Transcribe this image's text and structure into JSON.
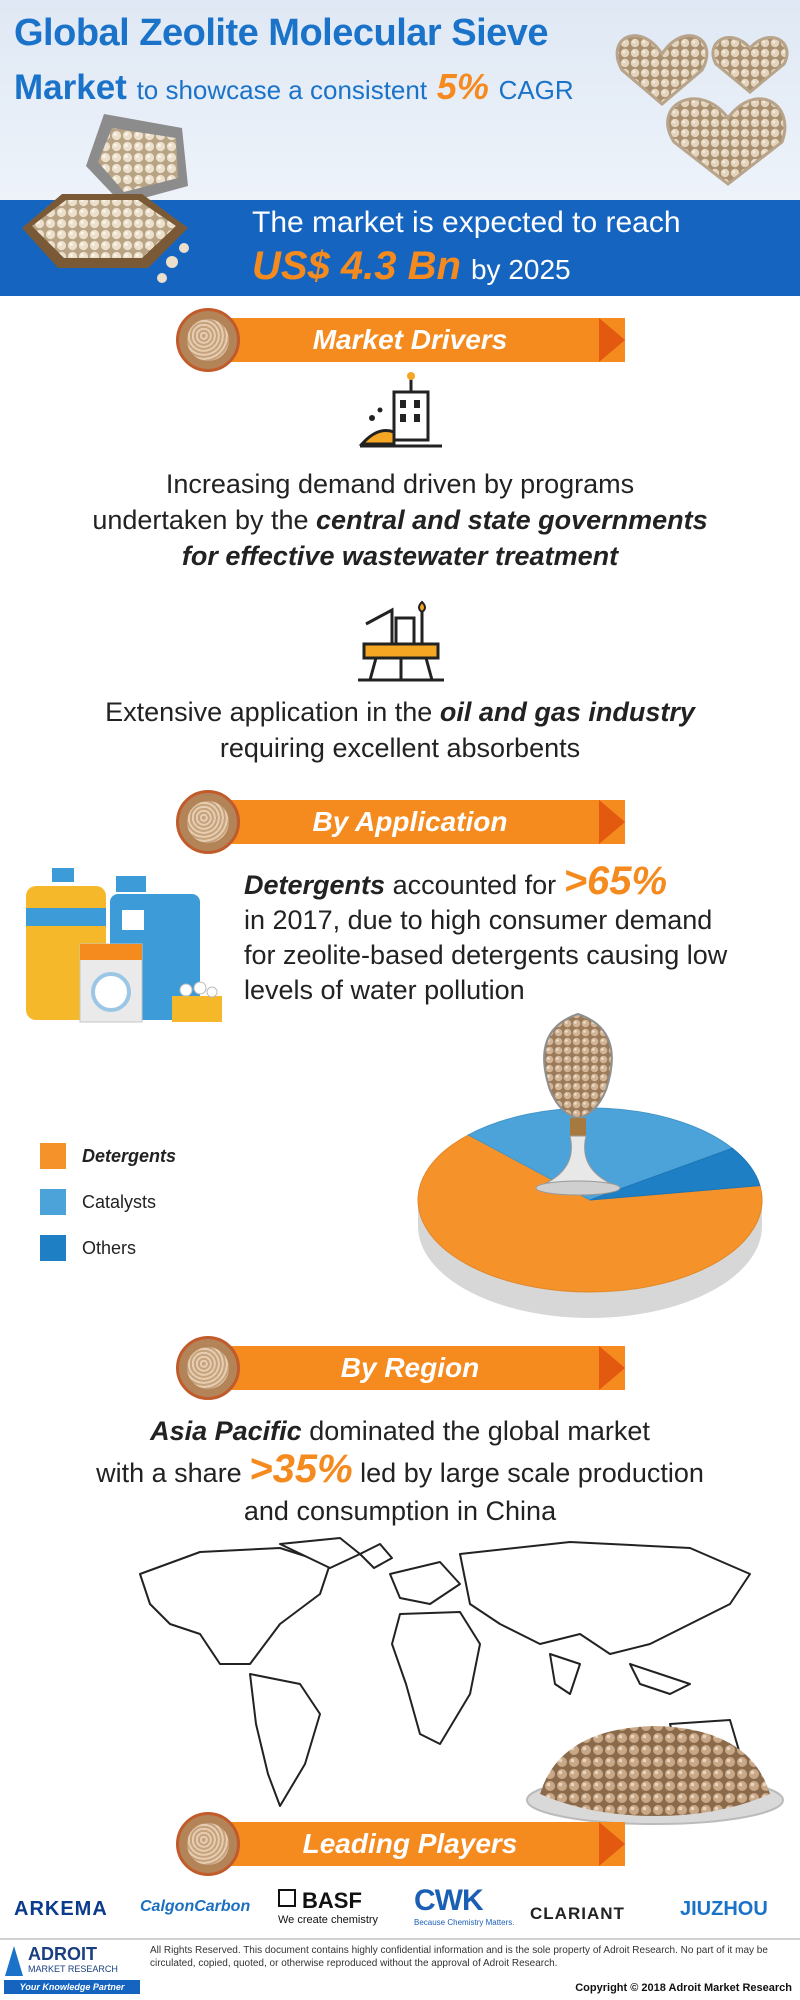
{
  "header": {
    "title_line1": "Global Zeolite Molecular Sieve",
    "title_market": "Market",
    "title_sub": "to showcase a consistent",
    "cagr_value": "5%",
    "cagr_label": "CAGR"
  },
  "banner": {
    "line1": "The market is expected to reach",
    "value": "US$ 4.3 Bn",
    "year": "by 2025"
  },
  "sections": {
    "drivers": "Market Drivers",
    "application": "By Application",
    "region": "By Region",
    "players": "Leading Players"
  },
  "drivers": {
    "d1_line1": "Increasing demand driven by programs",
    "d1_line2_plain": "undertaken by the",
    "d1_line2_bold": "central and state governments",
    "d1_line3_bold": "for effective wastewater treatment",
    "d2_plain1": "Extensive application in the",
    "d2_bold": "oil and gas industry",
    "d2_line2": "requiring excellent absorbents"
  },
  "application": {
    "lead_bold": "Detergents",
    "lead_plain": "accounted for",
    "share": ">65%",
    "line2": "in 2017, due to high consumer demand",
    "line3": "for zeolite-based detergents causing low",
    "line4": "levels of water pollution"
  },
  "chart_data": {
    "type": "pie",
    "labels": [
      "Detergents",
      "Catalysts",
      "Others"
    ],
    "values": [
      65,
      28,
      7
    ],
    "colors": [
      "#f5932a",
      "#4ba3d9",
      "#1f7fc5"
    ],
    "legend_position": "left"
  },
  "region": {
    "lead_bold": "Asia Pacific",
    "lead_plain": "dominated the global market",
    "line2_plain1": "with a share",
    "share": ">35%",
    "line2_plain2": "led by large scale production",
    "line3": "and consumption in China"
  },
  "players": {
    "arkema": "ARKEMA",
    "calgon": "CalgonCarbon",
    "basf": "BASF",
    "basf_tag": "We create chemistry",
    "cwk": "CWK",
    "cwk_tag": "Because Chemistry Matters.",
    "clariant": "CLARIANT",
    "jiuzhou": "JIUZHOU"
  },
  "footer": {
    "brand_line1": "ADROIT",
    "brand_line2": "MARKET RESEARCH",
    "brand_tag": "Your Knowledge Partner",
    "legal": "All Rights Reserved. This document contains highly confidential information and is the sole property of Adroit Research. No part of it may be circulated, copied, quoted, or otherwise reproduced without the approval of Adroit Research.",
    "copyright": "Copyright © 2018 Adroit Market Research"
  },
  "colors": {
    "brand_blue": "#1a73c9",
    "banner_blue": "#1565c0",
    "accent_orange": "#f58a1f"
  }
}
